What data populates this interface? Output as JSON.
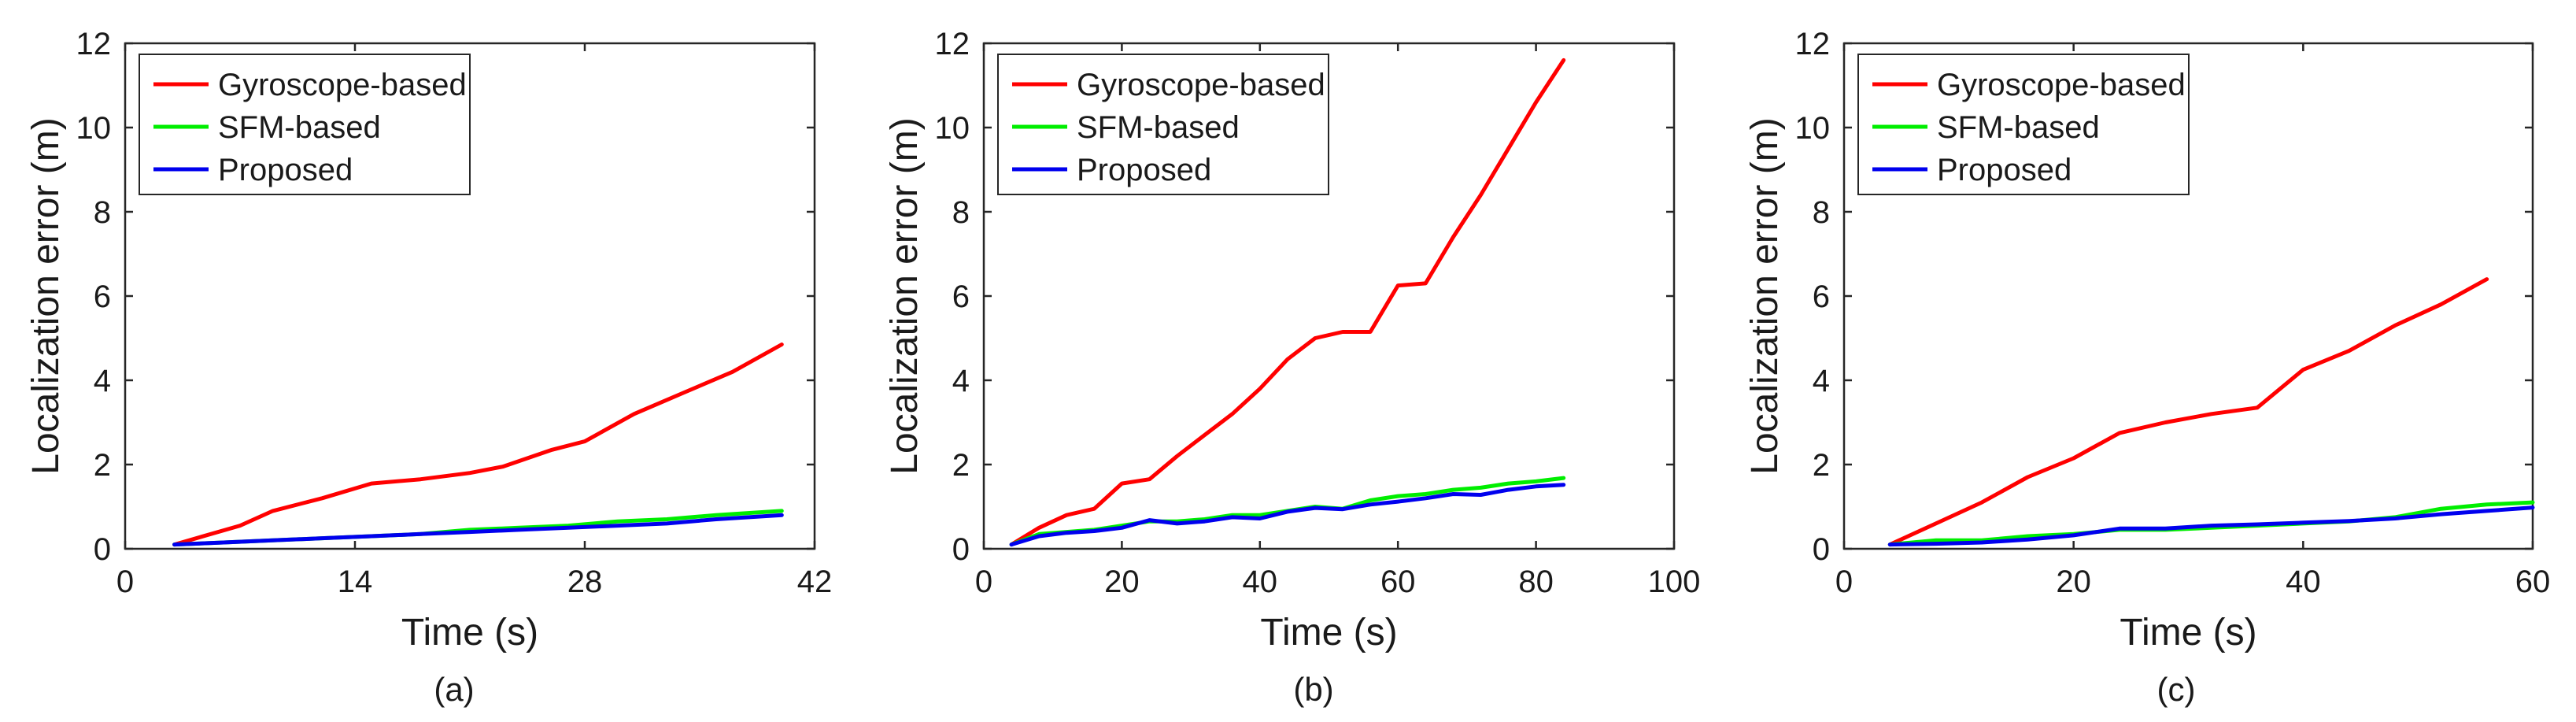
{
  "chart_data": [
    {
      "type": "line",
      "caption": "(a)",
      "xlabel": "Time (s)",
      "ylabel": "Localization error (m)",
      "xlim": [
        0,
        42
      ],
      "ylim": [
        0,
        12
      ],
      "xticks": [
        0,
        14,
        28,
        42
      ],
      "yticks": [
        0,
        2,
        4,
        6,
        8,
        10,
        12
      ],
      "grid": false,
      "legend": "top-left",
      "series": [
        {
          "name": "Gyroscope-based",
          "color": "#ff0000",
          "x": [
            3,
            7,
            9,
            12,
            15,
            18,
            21,
            23,
            26,
            28,
            31,
            34,
            37,
            40
          ],
          "y": [
            0.1,
            0.55,
            0.9,
            1.2,
            1.55,
            1.65,
            1.8,
            1.95,
            2.35,
            2.55,
            3.2,
            3.7,
            4.2,
            4.85
          ]
        },
        {
          "name": "SFM-based",
          "color": "#00ee00",
          "x": [
            3,
            6,
            9,
            12,
            15,
            18,
            21,
            24,
            27,
            30,
            33,
            36,
            40
          ],
          "y": [
            0.1,
            0.15,
            0.2,
            0.25,
            0.3,
            0.35,
            0.45,
            0.5,
            0.55,
            0.65,
            0.7,
            0.8,
            0.9
          ]
        },
        {
          "name": "Proposed",
          "color": "#0000ee",
          "x": [
            3,
            6,
            9,
            12,
            15,
            18,
            21,
            24,
            27,
            30,
            33,
            36,
            40
          ],
          "y": [
            0.1,
            0.15,
            0.2,
            0.25,
            0.3,
            0.35,
            0.4,
            0.45,
            0.5,
            0.55,
            0.6,
            0.7,
            0.8
          ]
        }
      ]
    },
    {
      "type": "line",
      "caption": "(b)",
      "xlabel": "Time (s)",
      "ylabel": "Localization error (m)",
      "xlim": [
        0,
        100
      ],
      "ylim": [
        0,
        12
      ],
      "xticks": [
        0,
        20,
        40,
        60,
        80,
        100
      ],
      "yticks": [
        0,
        2,
        4,
        6,
        8,
        10,
        12
      ],
      "grid": false,
      "legend": "top-left",
      "series": [
        {
          "name": "Gyroscope-based",
          "color": "#ff0000",
          "x": [
            4,
            8,
            12,
            16,
            20,
            24,
            28,
            32,
            36,
            40,
            44,
            48,
            52,
            56,
            60,
            64,
            68,
            72,
            76,
            80,
            84
          ],
          "y": [
            0.1,
            0.5,
            0.8,
            0.95,
            1.55,
            1.65,
            2.2,
            2.7,
            3.2,
            3.8,
            4.5,
            5.0,
            5.15,
            5.15,
            6.25,
            6.3,
            7.4,
            8.4,
            9.5,
            10.6,
            11.6
          ]
        },
        {
          "name": "SFM-based",
          "color": "#00ee00",
          "x": [
            4,
            8,
            12,
            16,
            20,
            24,
            28,
            32,
            36,
            40,
            44,
            48,
            52,
            56,
            60,
            64,
            68,
            72,
            76,
            80,
            84
          ],
          "y": [
            0.1,
            0.35,
            0.4,
            0.45,
            0.55,
            0.65,
            0.65,
            0.7,
            0.8,
            0.8,
            0.9,
            1.0,
            0.95,
            1.15,
            1.25,
            1.3,
            1.4,
            1.45,
            1.55,
            1.6,
            1.68
          ]
        },
        {
          "name": "Proposed",
          "color": "#0000ee",
          "x": [
            4,
            8,
            12,
            16,
            20,
            24,
            28,
            32,
            36,
            40,
            44,
            48,
            52,
            56,
            60,
            64,
            68,
            72,
            76,
            80,
            84
          ],
          "y": [
            0.1,
            0.3,
            0.38,
            0.42,
            0.5,
            0.68,
            0.6,
            0.65,
            0.75,
            0.72,
            0.88,
            0.97,
            0.94,
            1.05,
            1.12,
            1.2,
            1.3,
            1.28,
            1.4,
            1.48,
            1.52
          ]
        }
      ]
    },
    {
      "type": "line",
      "caption": "(c)",
      "xlabel": "Time (s)",
      "ylabel": "Localization error (m)",
      "xlim": [
        0,
        60
      ],
      "ylim": [
        0,
        12
      ],
      "xticks": [
        0,
        20,
        40,
        60
      ],
      "yticks": [
        0,
        2,
        4,
        6,
        8,
        10,
        12
      ],
      "grid": false,
      "legend": "top-left",
      "series": [
        {
          "name": "Gyroscope-based",
          "color": "#ff0000",
          "x": [
            4,
            8,
            12,
            16,
            20,
            24,
            28,
            32,
            36,
            40,
            44,
            48,
            52,
            56
          ],
          "y": [
            0.1,
            0.6,
            1.1,
            1.7,
            2.15,
            2.75,
            3.0,
            3.2,
            3.35,
            4.25,
            4.7,
            5.3,
            5.8,
            6.4
          ]
        },
        {
          "name": "SFM-based",
          "color": "#00ee00",
          "x": [
            4,
            8,
            12,
            16,
            20,
            24,
            28,
            32,
            36,
            40,
            44,
            48,
            52,
            56,
            60
          ],
          "y": [
            0.1,
            0.2,
            0.2,
            0.3,
            0.35,
            0.45,
            0.45,
            0.5,
            0.55,
            0.6,
            0.65,
            0.75,
            0.95,
            1.05,
            1.1
          ]
        },
        {
          "name": "Proposed",
          "color": "#0000ee",
          "x": [
            4,
            8,
            12,
            16,
            20,
            24,
            28,
            32,
            36,
            40,
            44,
            48,
            52,
            56,
            60
          ],
          "y": [
            0.1,
            0.12,
            0.15,
            0.22,
            0.32,
            0.48,
            0.48,
            0.55,
            0.58,
            0.62,
            0.66,
            0.72,
            0.82,
            0.9,
            0.98
          ]
        }
      ]
    }
  ]
}
